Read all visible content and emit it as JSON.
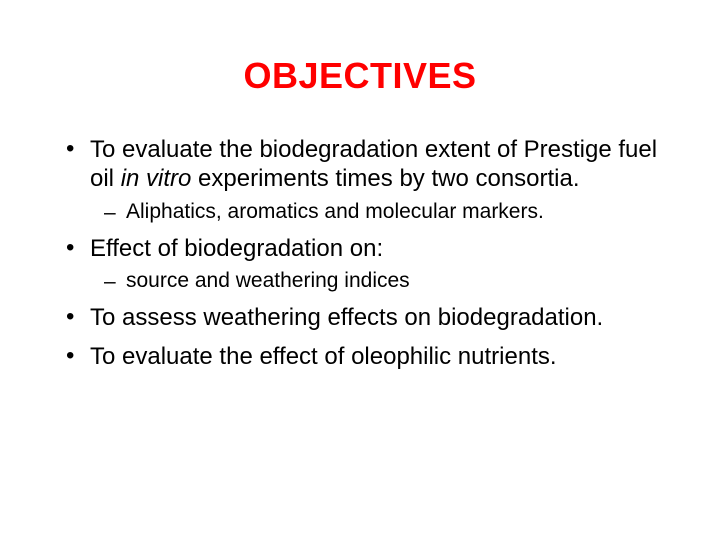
{
  "title": {
    "text": "OBJECTIVES",
    "color": "#ff0000",
    "fontsize": 36
  },
  "body": {
    "color": "#000000",
    "l1_fontsize": 24,
    "l2_fontsize": 21
  },
  "bullets": [
    {
      "parts": [
        {
          "text": "To evaluate the biodegradation extent of Prestige fuel oil ",
          "italic": false
        },
        {
          "text": "in vitro",
          "italic": true
        },
        {
          "text": " experiments times by two consortia.",
          "italic": false
        }
      ],
      "sub": [
        "Aliphatics, aromatics and molecular markers."
      ]
    },
    {
      "parts": [
        {
          "text": "Effect of biodegradation on:",
          "italic": false
        }
      ],
      "sub": [
        "source and weathering indices"
      ]
    },
    {
      "parts": [
        {
          "text": "To assess weathering effects on biodegradation.",
          "italic": false
        }
      ],
      "sub": []
    },
    {
      "parts": [
        {
          "text": "To evaluate the effect of oleophilic nutrients.",
          "italic": false
        }
      ],
      "sub": []
    }
  ]
}
